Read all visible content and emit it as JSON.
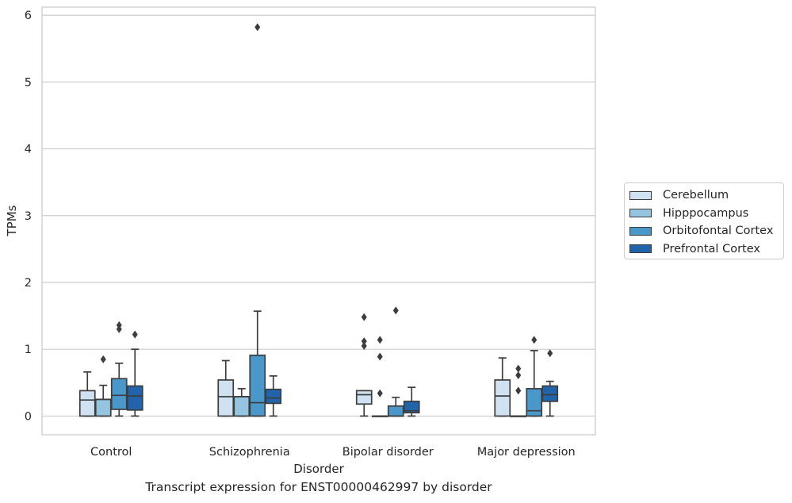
{
  "caption": "Transcript expression for ENST00000462997 by disorder",
  "chart_data": {
    "type": "boxplot",
    "xlabel": "Disorder",
    "ylabel": "TPMs",
    "ylim": [
      -0.28,
      6.12
    ],
    "yticks": [
      0,
      1,
      2,
      3,
      4,
      5,
      6
    ],
    "grid": true,
    "legend_position": "right",
    "categories": [
      "Control",
      "Schizophrenia",
      "Bipolar disorder",
      "Major depression"
    ],
    "series": [
      {
        "name": "Cerebellum",
        "color": "#d0e1f2",
        "boxes": [
          {
            "min": 0,
            "q1": 0,
            "median": 0.24,
            "q3": 0.38,
            "max": 0.66,
            "outliers": []
          },
          {
            "min": 0,
            "q1": 0,
            "median": 0.29,
            "q3": 0.54,
            "max": 0.83,
            "outliers": []
          },
          {
            "min": 0,
            "q1": 0.18,
            "median": 0.32,
            "q3": 0.38,
            "max": 0.38,
            "outliers": [
              1.48,
              1.12,
              1.05
            ]
          },
          {
            "min": 0,
            "q1": 0,
            "median": 0.3,
            "q3": 0.54,
            "max": 0.87,
            "outliers": []
          }
        ]
      },
      {
        "name": "Hipppocampus",
        "color": "#94c4df",
        "boxes": [
          {
            "min": 0,
            "q1": 0,
            "median": 0.25,
            "q3": 0.25,
            "max": 0.46,
            "outliers": [
              0.85
            ]
          },
          {
            "min": 0,
            "q1": 0,
            "median": 0.29,
            "q3": 0.29,
            "max": 0.41,
            "outliers": []
          },
          {
            "min": 0,
            "q1": 0,
            "median": 0,
            "q3": 0,
            "max": 0,
            "outliers": [
              1.14,
              0.89,
              0.34
            ]
          },
          {
            "min": 0,
            "q1": 0,
            "median": 0,
            "q3": 0,
            "max": 0,
            "outliers": [
              0.71,
              0.61,
              0.38
            ]
          }
        ]
      },
      {
        "name": "Orbitofontal Cortex",
        "color": "#4a98c9",
        "boxes": [
          {
            "min": 0,
            "q1": 0.1,
            "median": 0.31,
            "q3": 0.56,
            "max": 0.79,
            "outliers": [
              1.36,
              1.3
            ]
          },
          {
            "min": 0,
            "q1": 0,
            "median": 0.2,
            "q3": 0.91,
            "max": 1.57,
            "outliers": [
              5.82
            ]
          },
          {
            "min": 0,
            "q1": 0,
            "median": 0,
            "q3": 0.15,
            "max": 0.28,
            "outliers": [
              1.58
            ]
          },
          {
            "min": 0,
            "q1": 0,
            "median": 0.08,
            "q3": 0.41,
            "max": 0.98,
            "outliers": [
              1.14
            ]
          }
        ]
      },
      {
        "name": "Prefrontal Cortex",
        "color": "#2164ab",
        "boxes": [
          {
            "min": 0,
            "q1": 0.09,
            "median": 0.3,
            "q3": 0.45,
            "max": 1.0,
            "outliers": [
              1.22
            ]
          },
          {
            "min": 0,
            "q1": 0.19,
            "median": 0.27,
            "q3": 0.4,
            "max": 0.6,
            "outliers": []
          },
          {
            "min": 0,
            "q1": 0.05,
            "median": 0.08,
            "q3": 0.22,
            "max": 0.43,
            "outliers": []
          },
          {
            "min": 0,
            "q1": 0.22,
            "median": 0.32,
            "q3": 0.45,
            "max": 0.52,
            "outliers": [
              0.94
            ]
          }
        ]
      }
    ]
  }
}
